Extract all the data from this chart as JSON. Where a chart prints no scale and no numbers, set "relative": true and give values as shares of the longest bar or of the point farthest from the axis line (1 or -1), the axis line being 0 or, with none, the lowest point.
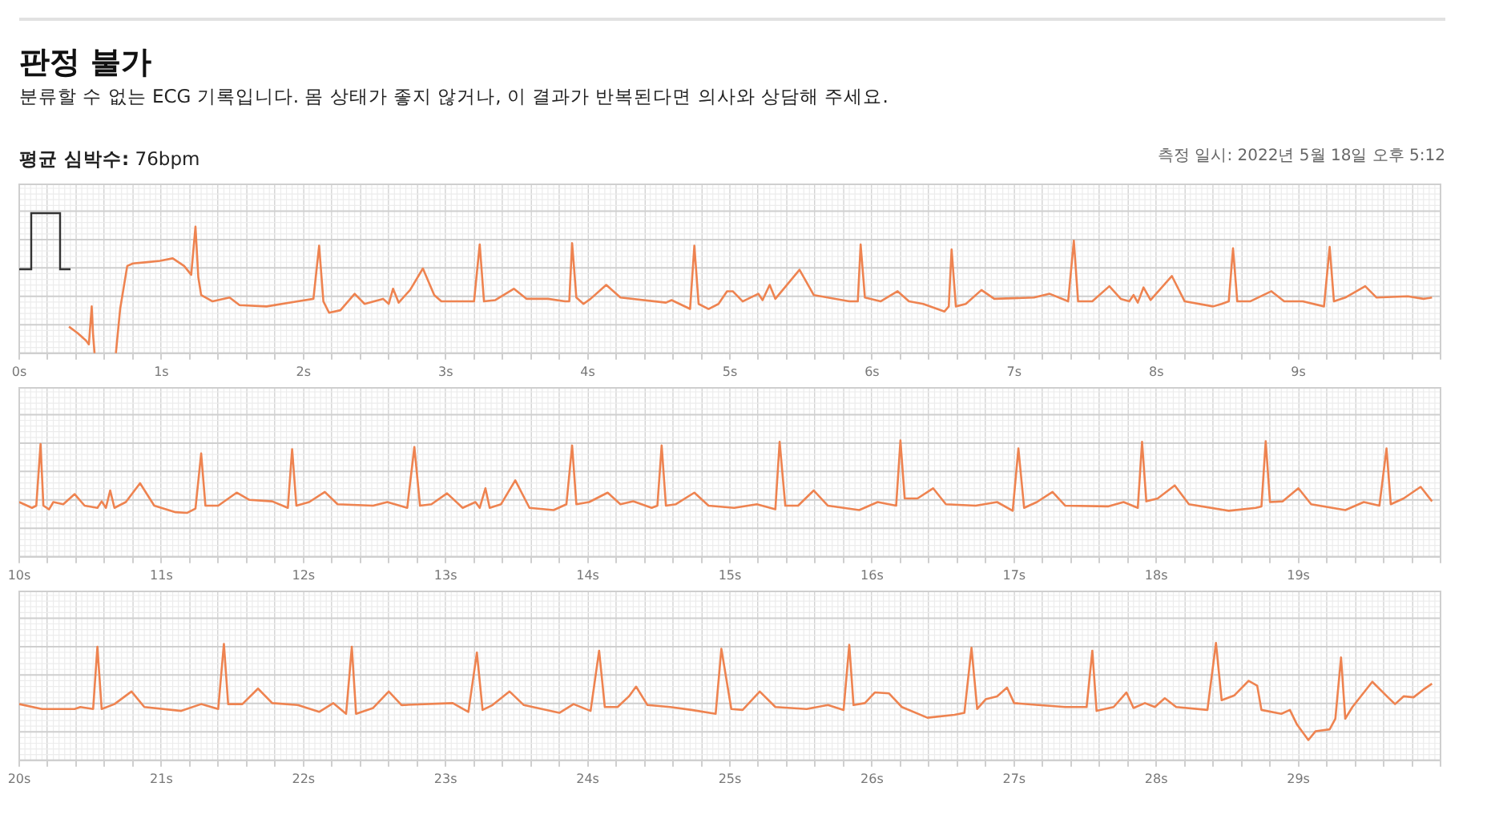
{
  "chart_data": [
    {
      "type": "line",
      "title": "판정 불가",
      "subtitle": "분류할 수 없는 ECG 기록입니다. 몸 상태가 좋지 않거나, 이 결과가 반복된다면 의사와 상담해 주세요.",
      "annotations": [
        "평균 심박수: 76bpm",
        "측정 일시: 2022년 5월 18일 오후 5:12"
      ],
      "relative": true,
      "grid": true,
      "xlim": [
        0,
        10
      ],
      "xticks": [
        {
          "value": 0,
          "label": "0s"
        },
        {
          "value": 0.2,
          "label": null
        },
        {
          "value": 0.4,
          "label": null
        },
        {
          "value": 0.6,
          "label": null
        },
        {
          "value": 0.8,
          "label": null
        },
        {
          "value": 1,
          "label": "1s"
        },
        {
          "value": 1.2,
          "label": null
        },
        {
          "value": 1.4,
          "label": null
        },
        {
          "value": 1.6,
          "label": null
        },
        {
          "value": 1.8,
          "label": null
        },
        {
          "value": 2,
          "label": "2s"
        },
        {
          "value": 2.2,
          "label": null
        },
        {
          "value": 2.4,
          "label": null
        },
        {
          "value": 2.6,
          "label": null
        },
        {
          "value": 2.8,
          "label": null
        },
        {
          "value": 3,
          "label": "3s"
        },
        {
          "value": 3.2,
          "label": null
        },
        {
          "value": 3.4,
          "label": null
        },
        {
          "value": 3.6,
          "label": null
        },
        {
          "value": 3.8,
          "label": null
        },
        {
          "value": 4,
          "label": "4s"
        },
        {
          "value": 4.2,
          "label": null
        },
        {
          "value": 4.4,
          "label": null
        },
        {
          "value": 4.6,
          "label": null
        },
        {
          "value": 4.8,
          "label": null
        },
        {
          "value": 5,
          "label": "5s"
        },
        {
          "value": 5.2,
          "label": null
        },
        {
          "value": 5.4,
          "label": null
        },
        {
          "value": 5.6,
          "label": null
        },
        {
          "value": 5.8,
          "label": null
        },
        {
          "value": 6,
          "label": "6s"
        },
        {
          "value": 6.2,
          "label": null
        },
        {
          "value": 6.4,
          "label": null
        },
        {
          "value": 6.6,
          "label": null
        },
        {
          "value": 6.8,
          "label": null
        },
        {
          "value": 7,
          "label": "7s"
        },
        {
          "value": 7.2,
          "label": null
        },
        {
          "value": 7.4,
          "label": null
        },
        {
          "value": 7.6,
          "label": null
        },
        {
          "value": 7.8,
          "label": null
        },
        {
          "value": 8,
          "label": "8s"
        },
        {
          "value": 8.2,
          "label": null
        },
        {
          "value": 8.4,
          "label": null
        },
        {
          "value": 8.6,
          "label": null
        },
        {
          "value": 8.8,
          "label": null
        },
        {
          "value": 9,
          "label": "9s"
        },
        {
          "value": 9.2,
          "label": null
        },
        {
          "value": 9.4,
          "label": null
        },
        {
          "value": 9.6,
          "label": null
        },
        {
          "value": 9.8,
          "label": null
        },
        {
          "value": 10,
          "label": null
        }
      ],
      "x": [
        0.35,
        0.41,
        0.47,
        0.49,
        0.51,
        0.52,
        0.53,
        0.6,
        0.68,
        0.71,
        0.76,
        0.8,
        0.9,
        0.99,
        1.08,
        1.16,
        1.21,
        1.24,
        1.26,
        1.28,
        1.36,
        1.48,
        1.55,
        1.74,
        1.96,
        2.07,
        2.11,
        2.14,
        2.18,
        2.26,
        2.36,
        2.43,
        2.56,
        2.6,
        2.63,
        2.67,
        2.75,
        2.84,
        2.92,
        2.97,
        3.2,
        3.24,
        3.27,
        3.35,
        3.48,
        3.57,
        3.72,
        3.84,
        3.87,
        3.89,
        3.92,
        3.97,
        4.02,
        4.13,
        4.23,
        4.55,
        4.59,
        4.72,
        4.75,
        4.78,
        4.85,
        4.92,
        4.98,
        5.02,
        5.09,
        5.2,
        5.23,
        5.28,
        5.32,
        5.49,
        5.59,
        5.84,
        5.9,
        5.92,
        5.95,
        6.06,
        6.18,
        6.26,
        6.36,
        6.51,
        6.54,
        6.56,
        6.59,
        6.66,
        6.77,
        6.86,
        7.14,
        7.25,
        7.38,
        7.42,
        7.45,
        7.55,
        7.67,
        7.75,
        7.81,
        7.84,
        7.87,
        7.91,
        7.96,
        8.11,
        8.2,
        8.4,
        8.46,
        8.51,
        8.54,
        8.57,
        8.66,
        8.81,
        8.9,
        9.03,
        9.18,
        9.22,
        9.25,
        9.33,
        9.47,
        9.55,
        9.77,
        9.88,
        9.94
      ],
      "series": [
        {
          "color": "#ee8350",
          "values": [
            0.21,
            0.16,
            0.1,
            0.07,
            0.37,
            0.14,
            0,
            null,
            0,
            0.35,
            0.69,
            0.71,
            0.72,
            0.73,
            0.75,
            0.69,
            0.62,
            1,
            0.6,
            0.46,
            0.41,
            0.44,
            0.38,
            0.37,
            0.41,
            0.43,
            0.85,
            0.41,
            0.32,
            0.34,
            0.47,
            0.39,
            0.43,
            0.39,
            0.51,
            0.4,
            0.5,
            0.67,
            0.46,
            0.41,
            0.41,
            0.86,
            0.41,
            0.42,
            0.51,
            0.43,
            0.43,
            0.41,
            0.41,
            0.87,
            0.44,
            0.39,
            0.43,
            0.54,
            0.44,
            0.4,
            0.42,
            0.35,
            0.85,
            0.39,
            0.35,
            0.39,
            0.49,
            0.49,
            0.41,
            0.47,
            0.42,
            0.54,
            0.43,
            0.66,
            0.46,
            0.41,
            0.41,
            0.86,
            0.44,
            0.41,
            0.49,
            0.41,
            0.39,
            0.33,
            0.37,
            0.82,
            0.37,
            0.39,
            0.5,
            0.43,
            0.44,
            0.47,
            0.41,
            0.89,
            0.41,
            0.41,
            0.53,
            0.43,
            0.41,
            0.46,
            0.4,
            0.52,
            0.42,
            0.61,
            0.41,
            0.37,
            0.39,
            0.41,
            0.83,
            0.41,
            0.41,
            0.49,
            0.41,
            0.41,
            0.37,
            0.84,
            0.41,
            0.44,
            0.53,
            0.44,
            0.45,
            0.43,
            0.44
          ]
        }
      ]
    },
    {
      "type": "line",
      "relative": true,
      "grid": true,
      "xlim": [
        10,
        20
      ],
      "xticks": [
        {
          "value": 10,
          "label": "10s"
        },
        {
          "value": 10.2,
          "label": null
        },
        {
          "value": 10.4,
          "label": null
        },
        {
          "value": 10.6,
          "label": null
        },
        {
          "value": 10.8,
          "label": null
        },
        {
          "value": 11,
          "label": "11s"
        },
        {
          "value": 11.2,
          "label": null
        },
        {
          "value": 11.4,
          "label": null
        },
        {
          "value": 11.6,
          "label": null
        },
        {
          "value": 11.8,
          "label": null
        },
        {
          "value": 12,
          "label": "12s"
        },
        {
          "value": 12.2,
          "label": null
        },
        {
          "value": 12.4,
          "label": null
        },
        {
          "value": 12.6,
          "label": null
        },
        {
          "value": 12.8,
          "label": null
        },
        {
          "value": 13,
          "label": "13s"
        },
        {
          "value": 13.2,
          "label": null
        },
        {
          "value": 13.4,
          "label": null
        },
        {
          "value": 13.6,
          "label": null
        },
        {
          "value": 13.8,
          "label": null
        },
        {
          "value": 14,
          "label": "14s"
        },
        {
          "value": 14.2,
          "label": null
        },
        {
          "value": 14.4,
          "label": null
        },
        {
          "value": 14.6,
          "label": null
        },
        {
          "value": 14.8,
          "label": null
        },
        {
          "value": 15,
          "label": "15s"
        },
        {
          "value": 15.2,
          "label": null
        },
        {
          "value": 15.4,
          "label": null
        },
        {
          "value": 15.6,
          "label": null
        },
        {
          "value": 15.8,
          "label": null
        },
        {
          "value": 16,
          "label": "16s"
        },
        {
          "value": 16.2,
          "label": null
        },
        {
          "value": 16.4,
          "label": null
        },
        {
          "value": 16.6,
          "label": null
        },
        {
          "value": 16.8,
          "label": null
        },
        {
          "value": 17,
          "label": "17s"
        },
        {
          "value": 17.2,
          "label": null
        },
        {
          "value": 17.4,
          "label": null
        },
        {
          "value": 17.6,
          "label": null
        },
        {
          "value": 17.8,
          "label": null
        },
        {
          "value": 18,
          "label": "18s"
        },
        {
          "value": 18.2,
          "label": null
        },
        {
          "value": 18.4,
          "label": null
        },
        {
          "value": 18.6,
          "label": null
        },
        {
          "value": 18.8,
          "label": null
        },
        {
          "value": 19,
          "label": "19s"
        },
        {
          "value": 19.2,
          "label": null
        },
        {
          "value": 19.4,
          "label": null
        },
        {
          "value": 19.6,
          "label": null
        },
        {
          "value": 19.8,
          "label": null
        },
        {
          "value": 20,
          "label": null
        }
      ],
      "x": [
        10,
        10.09,
        10.12,
        10.15,
        10.17,
        10.21,
        10.24,
        10.31,
        10.39,
        10.46,
        10.55,
        10.58,
        10.61,
        10.64,
        10.67,
        10.75,
        10.85,
        10.95,
        11.1,
        11.18,
        11.24,
        11.28,
        11.31,
        11.4,
        11.53,
        11.62,
        11.78,
        11.89,
        11.92,
        11.95,
        12.04,
        12.15,
        12.24,
        12.49,
        12.59,
        12.73,
        12.78,
        12.82,
        12.9,
        13.01,
        13.12,
        13.21,
        13.24,
        13.28,
        13.31,
        13.39,
        13.49,
        13.59,
        13.76,
        13.85,
        13.89,
        13.92,
        14.01,
        14.14,
        14.23,
        14.32,
        14.45,
        14.49,
        14.52,
        14.55,
        14.62,
        14.75,
        14.85,
        15.03,
        15.19,
        15.32,
        15.35,
        15.39,
        15.48,
        15.59,
        15.69,
        15.91,
        16.04,
        16.17,
        16.2,
        16.23,
        16.32,
        16.43,
        16.52,
        16.73,
        16.88,
        16.99,
        17.03,
        17.07,
        17.16,
        17.27,
        17.36,
        17.66,
        17.77,
        17.87,
        17.9,
        17.93,
        18.01,
        18.13,
        18.23,
        18.51,
        18.7,
        18.74,
        18.77,
        18.8,
        18.89,
        19,
        19.09,
        19.33,
        19.46,
        19.57,
        19.62,
        19.65,
        19.74,
        19.86,
        19.94
      ],
      "series": [
        {
          "color": "#ee8350",
          "values": [
            0.15,
            0.07,
            0.1,
            0.95,
            0.1,
            0.05,
            0.15,
            0.12,
            0.26,
            0.1,
            0.07,
            0.16,
            0.07,
            0.31,
            0.07,
            0.15,
            0.41,
            0.1,
            0.01,
            0,
            0.06,
            0.82,
            0.1,
            0.1,
            0.28,
            0.18,
            0.16,
            0.07,
            0.88,
            0.1,
            0.15,
            0.29,
            0.12,
            0.1,
            0.15,
            0.07,
            0.91,
            0.1,
            0.12,
            0.27,
            0.07,
            0.15,
            0.07,
            0.34,
            0.07,
            0.12,
            0.45,
            0.07,
            0.04,
            0.12,
            0.93,
            0.12,
            0.15,
            0.28,
            0.12,
            0.16,
            0.07,
            0.1,
            0.93,
            0.1,
            0.12,
            0.28,
            0.1,
            0.07,
            0.12,
            0.05,
            0.98,
            0.1,
            0.1,
            0.31,
            0.1,
            0.04,
            0.15,
            0.1,
            1,
            0.2,
            0.2,
            0.34,
            0.12,
            0.1,
            0.15,
            0.03,
            0.89,
            0.07,
            0.15,
            0.29,
            0.1,
            0.09,
            0.15,
            0.07,
            0.98,
            0.16,
            0.2,
            0.38,
            0.12,
            0.03,
            0.07,
            0.09,
            0.99,
            0.15,
            0.16,
            0.34,
            0.12,
            0.04,
            0.15,
            0.1,
            0.89,
            0.12,
            0.2,
            0.36,
            0.16
          ]
        }
      ]
    },
    {
      "type": "line",
      "relative": true,
      "grid": true,
      "xlim": [
        20,
        30
      ],
      "xticks": [
        {
          "value": 20,
          "label": "20s"
        },
        {
          "value": 20.2,
          "label": null
        },
        {
          "value": 20.4,
          "label": null
        },
        {
          "value": 20.6,
          "label": null
        },
        {
          "value": 20.8,
          "label": null
        },
        {
          "value": 21,
          "label": "21s"
        },
        {
          "value": 21.2,
          "label": null
        },
        {
          "value": 21.4,
          "label": null
        },
        {
          "value": 21.6,
          "label": null
        },
        {
          "value": 21.8,
          "label": null
        },
        {
          "value": 22,
          "label": "22s"
        },
        {
          "value": 22.2,
          "label": null
        },
        {
          "value": 22.4,
          "label": null
        },
        {
          "value": 22.6,
          "label": null
        },
        {
          "value": 22.8,
          "label": null
        },
        {
          "value": 23,
          "label": "23s"
        },
        {
          "value": 23.2,
          "label": null
        },
        {
          "value": 23.4,
          "label": null
        },
        {
          "value": 23.6,
          "label": null
        },
        {
          "value": 23.8,
          "label": null
        },
        {
          "value": 24,
          "label": "24s"
        },
        {
          "value": 24.2,
          "label": null
        },
        {
          "value": 24.4,
          "label": null
        },
        {
          "value": 24.6,
          "label": null
        },
        {
          "value": 24.8,
          "label": null
        },
        {
          "value": 25,
          "label": "25s"
        },
        {
          "value": 25.2,
          "label": null
        },
        {
          "value": 25.4,
          "label": null
        },
        {
          "value": 25.6,
          "label": null
        },
        {
          "value": 25.8,
          "label": null
        },
        {
          "value": 26,
          "label": "26s"
        },
        {
          "value": 26.2,
          "label": null
        },
        {
          "value": 26.4,
          "label": null
        },
        {
          "value": 26.6,
          "label": null
        },
        {
          "value": 26.8,
          "label": null
        },
        {
          "value": 27,
          "label": "27s"
        },
        {
          "value": 27.2,
          "label": null
        },
        {
          "value": 27.4,
          "label": null
        },
        {
          "value": 27.6,
          "label": null
        },
        {
          "value": 27.8,
          "label": null
        },
        {
          "value": 28,
          "label": "28s"
        },
        {
          "value": 28.2,
          "label": null
        },
        {
          "value": 28.4,
          "label": null
        },
        {
          "value": 28.6,
          "label": null
        },
        {
          "value": 28.8,
          "label": null
        },
        {
          "value": 29,
          "label": "29s"
        },
        {
          "value": 29.2,
          "label": null
        },
        {
          "value": 29.4,
          "label": null
        },
        {
          "value": 29.6,
          "label": null
        },
        {
          "value": 29.8,
          "label": null
        },
        {
          "value": 30,
          "label": null
        }
      ],
      "x": [
        20,
        20.16,
        20.39,
        20.43,
        20.52,
        20.55,
        20.58,
        20.67,
        20.79,
        20.88,
        21.14,
        21.28,
        21.4,
        21.44,
        21.47,
        21.57,
        21.68,
        21.78,
        21.96,
        22.11,
        22.21,
        22.3,
        22.34,
        22.37,
        22.49,
        22.6,
        22.69,
        23.05,
        23.16,
        23.22,
        23.26,
        23.33,
        23.45,
        23.55,
        23.8,
        23.9,
        24.02,
        24.08,
        24.12,
        24.21,
        24.29,
        24.34,
        24.42,
        24.58,
        24.73,
        24.9,
        24.94,
        25.01,
        25.09,
        25.21,
        25.32,
        25.54,
        25.69,
        25.8,
        25.84,
        25.87,
        25.95,
        26.02,
        26.12,
        26.21,
        26.39,
        26.58,
        26.65,
        26.7,
        26.74,
        26.8,
        26.88,
        26.95,
        27,
        27.17,
        27.36,
        27.51,
        27.55,
        27.58,
        27.7,
        27.79,
        27.84,
        27.92,
        27.99,
        28.06,
        28.14,
        28.36,
        28.42,
        28.46,
        28.55,
        28.65,
        28.71,
        28.74,
        28.88,
        28.94,
        28.99,
        29.07,
        29.12,
        29.22,
        29.26,
        29.3,
        29.33,
        29.38,
        29.52,
        29.63,
        29.68,
        29.74,
        29.81,
        29.88,
        29.94
      ],
      "series": [
        {
          "color": "#ee8350",
          "values": [
            0.37,
            0.32,
            0.32,
            0.34,
            0.32,
            0.96,
            0.32,
            0.37,
            0.5,
            0.34,
            0.3,
            0.37,
            0.32,
            0.99,
            0.37,
            0.37,
            0.53,
            0.38,
            0.36,
            0.29,
            0.38,
            0.27,
            0.96,
            0.27,
            0.33,
            0.5,
            0.36,
            0.38,
            0.29,
            0.9,
            0.31,
            0.36,
            0.5,
            0.36,
            0.28,
            0.37,
            0.3,
            0.92,
            0.34,
            0.34,
            0.45,
            0.55,
            0.36,
            0.34,
            0.31,
            0.27,
            0.94,
            0.32,
            0.31,
            0.5,
            0.34,
            0.32,
            0.36,
            0.31,
            0.98,
            0.36,
            0.38,
            0.49,
            0.48,
            0.34,
            0.23,
            0.26,
            0.28,
            0.95,
            0.32,
            0.42,
            0.45,
            0.54,
            0.38,
            0.36,
            0.34,
            0.34,
            0.92,
            0.3,
            0.34,
            0.49,
            0.33,
            0.38,
            0.34,
            0.43,
            0.34,
            0.31,
            1,
            0.41,
            0.46,
            0.61,
            0.56,
            0.31,
            0.27,
            0.31,
            0.16,
            0,
            0.09,
            0.11,
            0.22,
            0.85,
            0.22,
            0.34,
            0.6,
            0.44,
            0.37,
            0.45,
            0.44,
            0.52,
            0.58
          ]
        }
      ]
    }
  ]
}
